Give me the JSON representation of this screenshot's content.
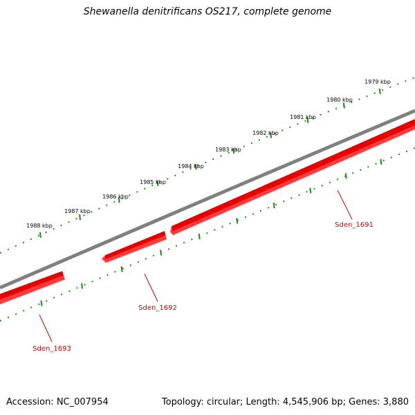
{
  "title": "Shewanella denitrificans OS217, complete genome",
  "footer": {
    "accession": "Accession: NC_007954",
    "summary": "Topology: circular; Length: 4,545,906 bp; Genes: 3,880"
  },
  "scale_labels": [
    "1979 kbp",
    "1980 kbp",
    "1981 kbp",
    "1982 kbp",
    "1983 kbp",
    "1984 kbp",
    "1985 kbp",
    "1986 kbp",
    "1987 kbp",
    "1988 kbp"
  ],
  "genes": [
    {
      "name": "Sden_1691",
      "strand": "reverse"
    },
    {
      "name": "Sden_1692",
      "strand": "reverse"
    },
    {
      "name": "Sden_1693",
      "strand": "reverse"
    }
  ],
  "colors": {
    "backbone": "#808080",
    "gene": "#ff0000",
    "gene_label": "#cc0000",
    "ticks": "#1a8a1a"
  }
}
